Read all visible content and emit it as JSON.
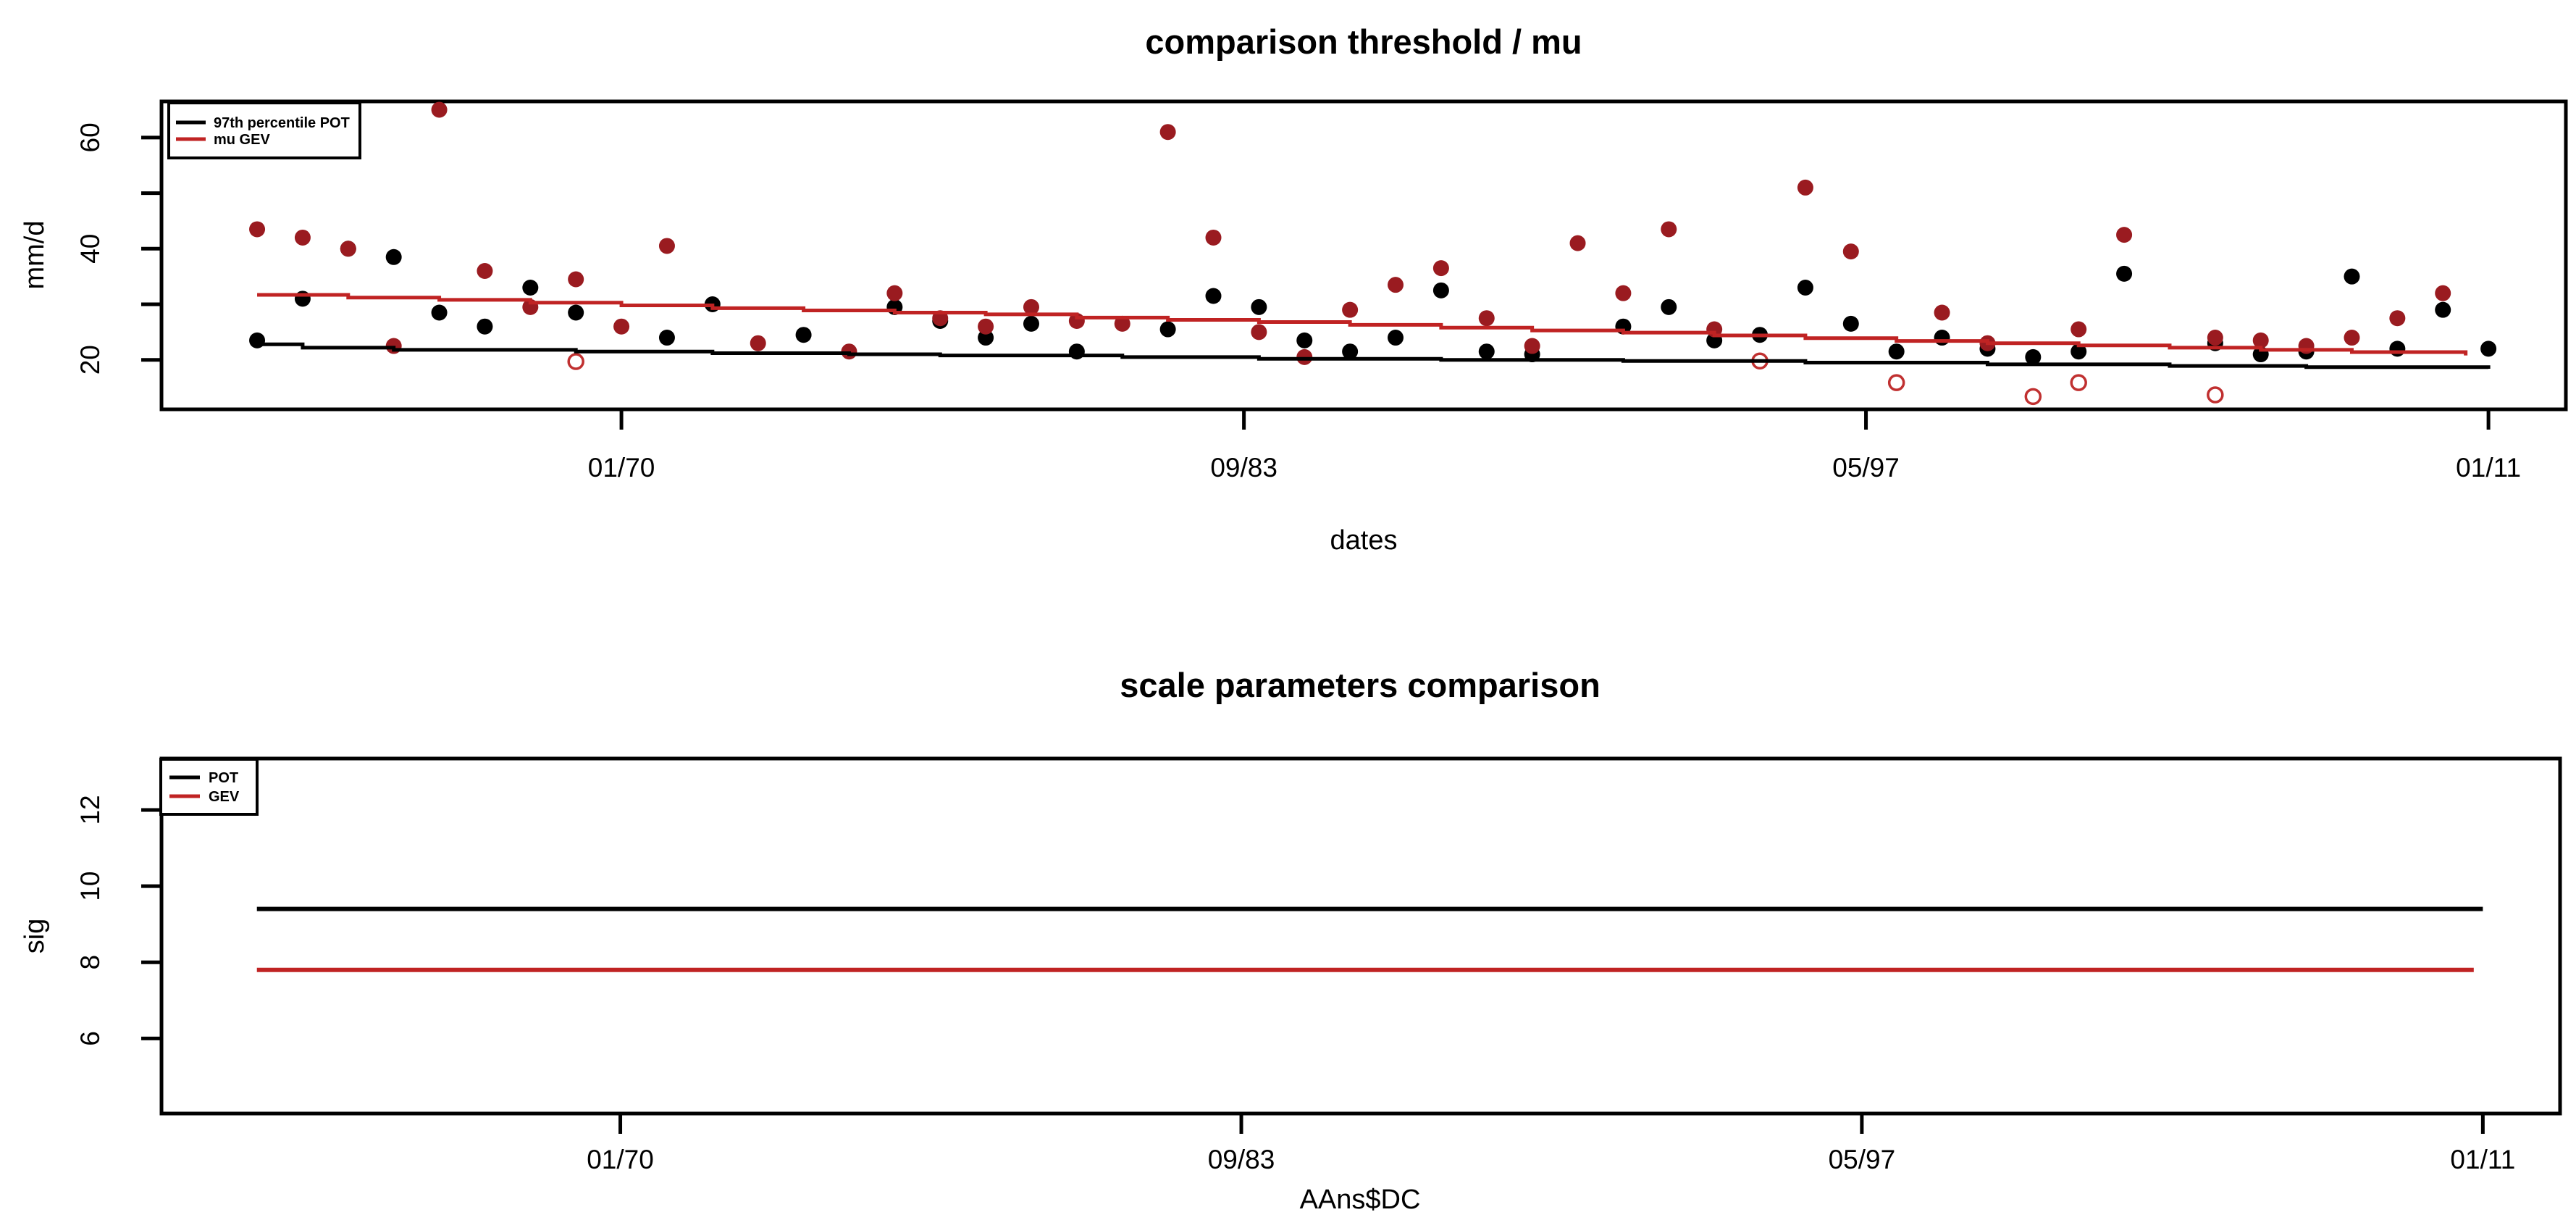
{
  "figure": {
    "background": "#ffffff",
    "frame_color": "#000000"
  },
  "colors": {
    "black": "#000000",
    "red_line": "#c02323",
    "red_point": "#9a1b20",
    "red_ring": "#c03030"
  },
  "chart_data": [
    {
      "type": "scatter",
      "title": "comparison threshold / mu",
      "xlabel": "dates",
      "ylabel": "mm/d",
      "x_ticks": [
        {
          "x": 1970.0,
          "label": "01/70"
        },
        {
          "x": 1983.67,
          "label": "09/83"
        },
        {
          "x": 1997.33,
          "label": "05/97"
        },
        {
          "x": 2011.0,
          "label": "01/11"
        }
      ],
      "y_ticks": [
        {
          "v": 20,
          "label": "20"
        },
        {
          "v": 30,
          "label": ""
        },
        {
          "v": 40,
          "label": "40"
        },
        {
          "v": 50,
          "label": ""
        },
        {
          "v": 60,
          "label": "60"
        }
      ],
      "xlim": [
        1959.9,
        2012.7
      ],
      "ylim": [
        11.1,
        66.5
      ],
      "grid": false,
      "legend_position": "top-left",
      "legend": [
        {
          "label": "97th percentile POT",
          "color": "#000000"
        },
        {
          "label": "mu GEV",
          "color": "#c02323"
        }
      ],
      "series": [
        {
          "name": "97th percentile POT points",
          "kind": "points",
          "color": "#000000",
          "points": [
            [
              1962,
              23.5
            ],
            [
              1963,
              31
            ],
            [
              1964,
              40
            ],
            [
              1965,
              38.5
            ],
            [
              1966,
              28.5
            ],
            [
              1967,
              26
            ],
            [
              1968,
              33
            ],
            [
              1969,
              28.5
            ],
            [
              1971,
              24
            ],
            [
              1972,
              30
            ],
            [
              1974,
              24.5
            ],
            [
              1976,
              29.5
            ],
            [
              1977,
              27
            ],
            [
              1978,
              24
            ],
            [
              1979,
              26.5
            ],
            [
              1980,
              21.5
            ],
            [
              1982,
              25.5
            ],
            [
              1983,
              31.5
            ],
            [
              1984,
              29.5
            ],
            [
              1985,
              23.5
            ],
            [
              1986,
              21.5
            ],
            [
              1987,
              24
            ],
            [
              1988,
              32.5
            ],
            [
              1989,
              21.5
            ],
            [
              1990,
              21
            ],
            [
              1992,
              26
            ],
            [
              1993,
              29.5
            ],
            [
              1994,
              23.5
            ],
            [
              1995,
              24.5
            ],
            [
              1996,
              33
            ],
            [
              1997,
              26.5
            ],
            [
              1998,
              21.5
            ],
            [
              1999,
              24
            ],
            [
              2000,
              22
            ],
            [
              2001,
              20.5
            ],
            [
              2002,
              21.5
            ],
            [
              2003,
              35.5
            ],
            [
              2005,
              23
            ],
            [
              2006,
              21
            ],
            [
              2007,
              21.5
            ],
            [
              2008,
              35
            ],
            [
              2009,
              22
            ],
            [
              2010,
              29
            ],
            [
              2011,
              22
            ]
          ]
        },
        {
          "name": "mu GEV points",
          "kind": "points",
          "color": "#9a1b20",
          "points": [
            [
              1962,
              43.5
            ],
            [
              1963,
              42
            ],
            [
              1964,
              40
            ],
            [
              1965,
              22.5
            ],
            [
              1966,
              65
            ],
            [
              1967,
              36
            ],
            [
              1968,
              29.5
            ],
            [
              1969,
              34.5
            ],
            [
              1970,
              26
            ],
            [
              1971,
              40.5
            ],
            [
              1973,
              23
            ],
            [
              1975,
              21.5
            ],
            [
              1976,
              32
            ],
            [
              1977,
              27.5
            ],
            [
              1978,
              26
            ],
            [
              1979,
              29.5
            ],
            [
              1980,
              27
            ],
            [
              1981,
              26.5
            ],
            [
              1982,
              61
            ],
            [
              1983,
              42
            ],
            [
              1984,
              25
            ],
            [
              1985,
              20.5
            ],
            [
              1986,
              29
            ],
            [
              1987,
              33.5
            ],
            [
              1988,
              36.5
            ],
            [
              1989,
              27.5
            ],
            [
              1990,
              22.5
            ],
            [
              1991,
              41
            ],
            [
              1992,
              32
            ],
            [
              1993,
              43.5
            ],
            [
              1994,
              25.5
            ],
            [
              1996,
              51
            ],
            [
              1997,
              39.5
            ],
            [
              1999,
              28.5
            ],
            [
              2000,
              23
            ],
            [
              2002,
              25.5
            ],
            [
              2003,
              42.5
            ],
            [
              2005,
              24
            ],
            [
              2006,
              23.5
            ],
            [
              2007,
              22.5
            ],
            [
              2008,
              24
            ],
            [
              2009,
              27.5
            ],
            [
              2010,
              32
            ]
          ]
        },
        {
          "name": "GEV open circles",
          "kind": "open_points",
          "color": "#c03030",
          "points": [
            [
              1969,
              19.7
            ],
            [
              1995,
              19.8
            ],
            [
              1998,
              15.9
            ],
            [
              2001,
              13.4
            ],
            [
              2002,
              15.9
            ],
            [
              2005,
              13.7
            ]
          ]
        },
        {
          "name": "97th percentile POT line",
          "kind": "step_line",
          "color": "#000000",
          "points": [
            [
              1962,
              22.8
            ],
            [
              1963,
              22.2
            ],
            [
              1965,
              21.8
            ],
            [
              1969,
              21.5
            ],
            [
              1972,
              21.2
            ],
            [
              1975,
              21.0
            ],
            [
              1977,
              20.8
            ],
            [
              1981,
              20.5
            ],
            [
              1984,
              20.2
            ],
            [
              1988,
              20.0
            ],
            [
              1992,
              19.8
            ],
            [
              1996,
              19.5
            ],
            [
              2000,
              19.2
            ],
            [
              2004,
              18.9
            ],
            [
              2007,
              18.7
            ],
            [
              2011,
              18.4
            ]
          ]
        },
        {
          "name": "mu GEV line",
          "kind": "step_line",
          "color": "#c02323",
          "points": [
            [
              1962,
              31.7
            ],
            [
              1964,
              31.2
            ],
            [
              1966,
              30.8
            ],
            [
              1968,
              30.3
            ],
            [
              1970,
              29.8
            ],
            [
              1972,
              29.3
            ],
            [
              1974,
              28.9
            ],
            [
              1976,
              28.5
            ],
            [
              1978,
              28.2
            ],
            [
              1980,
              27.6
            ],
            [
              1982,
              27.2
            ],
            [
              1984,
              26.8
            ],
            [
              1986,
              26.3
            ],
            [
              1988,
              25.8
            ],
            [
              1990,
              25.3
            ],
            [
              1992,
              24.9
            ],
            [
              1994,
              24.4
            ],
            [
              1996,
              23.9
            ],
            [
              1998,
              23.4
            ],
            [
              2000,
              23.0
            ],
            [
              2002,
              22.6
            ],
            [
              2004,
              22.2
            ],
            [
              2006,
              21.8
            ],
            [
              2008,
              21.4
            ],
            [
              2010.5,
              20.8
            ]
          ]
        }
      ]
    },
    {
      "type": "line",
      "title": "scale parameters comparison",
      "xlabel": "AAns$DC",
      "ylabel": "sig",
      "x_ticks": [
        {
          "x": 1970.0,
          "label": "01/70"
        },
        {
          "x": 1983.67,
          "label": "09/83"
        },
        {
          "x": 1997.33,
          "label": "05/97"
        },
        {
          "x": 2011.0,
          "label": "01/11"
        }
      ],
      "y_ticks": [
        {
          "v": 6,
          "label": "6"
        },
        {
          "v": 8,
          "label": "8"
        },
        {
          "v": 10,
          "label": "10"
        },
        {
          "v": 12,
          "label": "12"
        }
      ],
      "xlim": [
        1959.9,
        2012.7
      ],
      "ylim": [
        4.03,
        13.35
      ],
      "grid": false,
      "legend_position": "top-left",
      "legend": [
        {
          "label": "POT",
          "color": "#000000"
        },
        {
          "label": "GEV",
          "color": "#c02323"
        }
      ],
      "series": [
        {
          "name": "POT scale",
          "kind": "line",
          "color": "#000000",
          "points": [
            [
              1962,
              9.4
            ],
            [
              2011,
              9.4
            ]
          ]
        },
        {
          "name": "GEV scale",
          "kind": "line",
          "color": "#c02323",
          "points": [
            [
              1962,
              7.8
            ],
            [
              2010.8,
              7.8
            ]
          ]
        }
      ]
    }
  ]
}
